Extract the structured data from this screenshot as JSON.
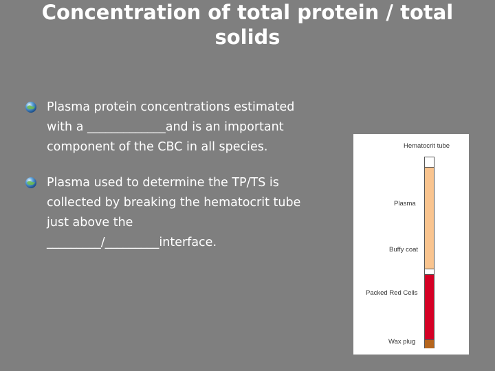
{
  "title": {
    "line1": "Concentration of total protein / total",
    "line2": "solids"
  },
  "bullets": [
    {
      "lines": [
        "Plasma protein concentrations estimated",
        "with a _____________and is an important",
        "component of the CBC in all species."
      ]
    },
    {
      "lines": [
        "Plasma used to determine the TP/TS is",
        "collected by breaking the hematocrit tube",
        "just above the",
        "_________/_________interface."
      ]
    }
  ],
  "diagram": {
    "title": "Hematocrit tube",
    "labels": {
      "plasma": "Plasma",
      "buffy_coat": "Buffy coat",
      "packed_red_cells": "Packed Red Cells",
      "wax_plug": "Wax plug"
    },
    "colors": {
      "plasma": "#f9c48f",
      "packed_red_cells": "#d40025",
      "wax_plug": "#b5651d",
      "background": "#7f7f7f"
    }
  },
  "icons": {
    "bullet": "globe-bullet-icon"
  }
}
